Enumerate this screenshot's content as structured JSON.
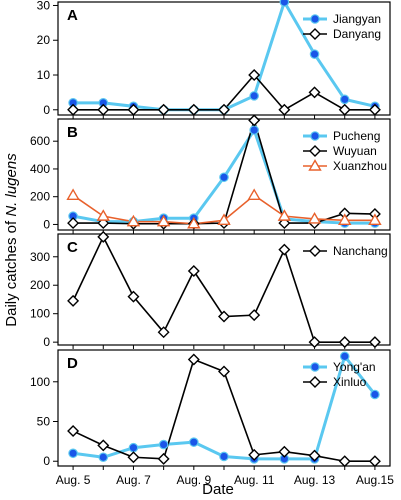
{
  "colors": {
    "blue": "#5AC8F0",
    "blue_marker": "#1A56E8",
    "black": "#000000",
    "orange": "#E8612C"
  },
  "y_axis_title": {
    "prefix": "Daily catches of ",
    "species": "N. lugens"
  },
  "x_axis_title": "Date",
  "x_tick_labels": [
    "Aug. 5",
    "Aug. 7",
    "Aug. 9",
    "Aug. 11",
    "Aug. 13",
    "Aug.15"
  ],
  "chart_data": [
    {
      "type": "line",
      "panel": "A",
      "x": [
        5,
        6,
        7,
        8,
        9,
        10,
        11,
        12,
        13,
        14,
        15
      ],
      "ylim": [
        -1.5,
        31
      ],
      "yticks": [
        0,
        10,
        20,
        30
      ],
      "legend_position": "top-right",
      "series": [
        {
          "name": "Jiangyan",
          "style": "blue",
          "values": [
            2,
            2,
            1,
            0,
            0,
            0,
            4,
            31,
            16,
            3,
            1
          ]
        },
        {
          "name": "Danyang",
          "style": "diamond",
          "values": [
            0,
            0,
            0,
            0,
            0,
            0,
            10,
            0,
            5,
            0,
            0
          ]
        }
      ]
    },
    {
      "type": "line",
      "panel": "B",
      "x": [
        5,
        6,
        7,
        8,
        9,
        10,
        11,
        12,
        13,
        14,
        15
      ],
      "ylim": [
        -40,
        760
      ],
      "yticks": [
        0,
        200,
        400,
        600
      ],
      "legend_position": "top-right",
      "series": [
        {
          "name": "Pucheng",
          "style": "blue",
          "values": [
            60,
            20,
            20,
            45,
            45,
            340,
            680,
            40,
            20,
            10,
            10
          ]
        },
        {
          "name": "Wuyuan",
          "style": "diamond",
          "values": [
            10,
            10,
            5,
            5,
            5,
            10,
            750,
            10,
            10,
            80,
            75
          ]
        },
        {
          "name": "Xuanzhou",
          "style": "triangle",
          "values": [
            210,
            60,
            20,
            20,
            5,
            30,
            210,
            60,
            40,
            30,
            30
          ]
        }
      ]
    },
    {
      "type": "line",
      "panel": "C",
      "x": [
        5,
        6,
        7,
        8,
        9,
        10,
        11,
        12,
        13,
        14,
        15
      ],
      "ylim": [
        -10,
        380
      ],
      "yticks": [
        0,
        100,
        200,
        300
      ],
      "legend_position": "top-right",
      "series": [
        {
          "name": "Nanchang",
          "style": "diamond",
          "values": [
            145,
            370,
            160,
            35,
            250,
            90,
            95,
            325,
            0,
            0,
            0
          ]
        }
      ]
    },
    {
      "type": "line",
      "panel": "D",
      "x": [
        5,
        6,
        7,
        8,
        9,
        10,
        11,
        12,
        13,
        14,
        15
      ],
      "ylim": [
        -6,
        140
      ],
      "yticks": [
        0,
        50,
        100
      ],
      "legend_position": "top-right",
      "series": [
        {
          "name": "Yong'an",
          "style": "blue",
          "values": [
            10,
            5,
            17,
            21,
            24,
            6,
            3,
            3,
            3,
            132,
            84
          ]
        },
        {
          "name": "Xinluo",
          "style": "diamond",
          "values": [
            38,
            20,
            5,
            3,
            128,
            113,
            8,
            12,
            7,
            0,
            0
          ]
        }
      ]
    }
  ]
}
